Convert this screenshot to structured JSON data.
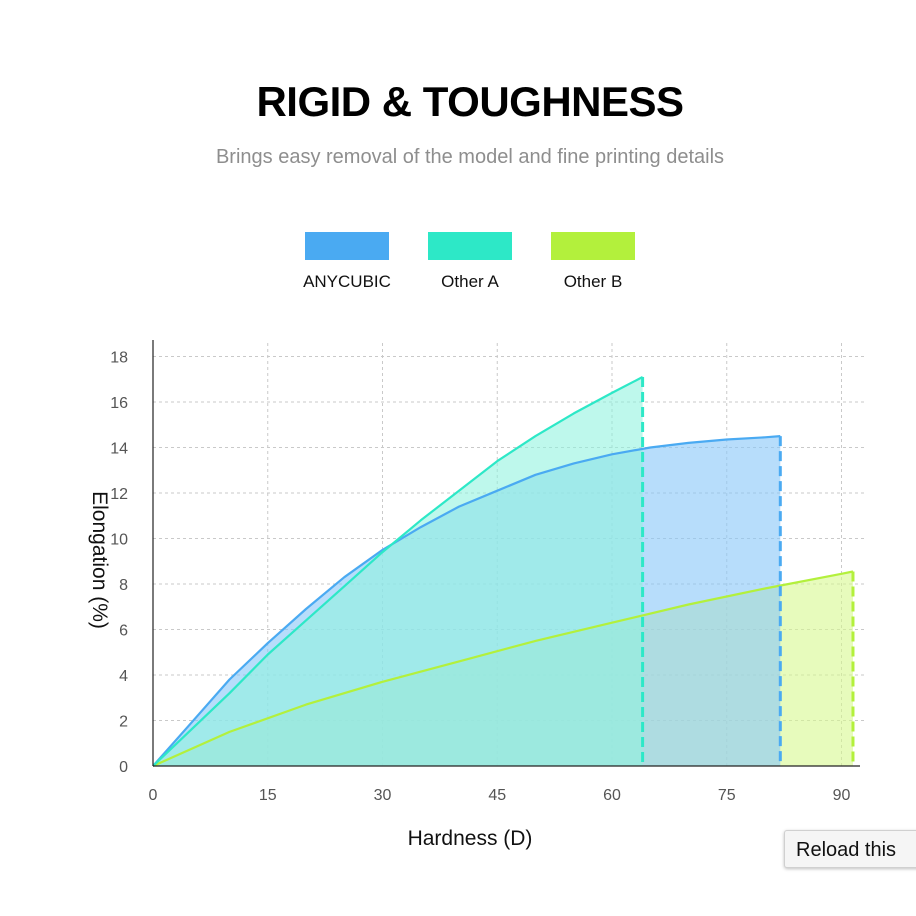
{
  "header": {
    "title": "RIGID & TOUGHNESS",
    "subtitle": "Brings easy removal of the model and fine printing details"
  },
  "reload_button": {
    "label": "Reload this"
  },
  "chart_data": {
    "type": "area",
    "xlabel": "Hardness (D)",
    "ylabel": "Elongation (%)",
    "xlim": [
      0,
      93
    ],
    "ylim": [
      0,
      18
    ],
    "xticks": [
      0,
      15,
      30,
      45,
      60,
      75,
      90
    ],
    "yticks": [
      0,
      2,
      4,
      6,
      8,
      10,
      12,
      14,
      16,
      18
    ],
    "grid": true,
    "legend_position": "top-center",
    "series": [
      {
        "name": "ANYCUBIC",
        "color": "#4aaaf2",
        "fill": "#8ac8f8",
        "x": [
          0,
          5,
          10,
          15,
          20,
          25,
          30,
          35,
          40,
          45,
          50,
          55,
          60,
          65,
          70,
          75,
          80,
          82
        ],
        "y": [
          0,
          1.9,
          3.8,
          5.4,
          6.9,
          8.3,
          9.5,
          10.5,
          11.4,
          12.1,
          12.8,
          13.3,
          13.7,
          14.0,
          14.2,
          14.35,
          14.45,
          14.5
        ]
      },
      {
        "name": "Other A",
        "color": "#2de8c7",
        "fill": "#8ff3df",
        "x": [
          0,
          5,
          10,
          15,
          20,
          25,
          30,
          35,
          40,
          45,
          50,
          55,
          60,
          64
        ],
        "y": [
          0,
          1.6,
          3.2,
          4.9,
          6.4,
          7.9,
          9.4,
          10.8,
          12.1,
          13.4,
          14.5,
          15.5,
          16.4,
          17.1
        ]
      },
      {
        "name": "Other B",
        "color": "#b3f03c",
        "fill": "#d7f88f",
        "x": [
          0,
          10,
          20,
          30,
          40,
          50,
          60,
          70,
          80,
          90,
          91.5
        ],
        "y": [
          0,
          1.5,
          2.7,
          3.7,
          4.6,
          5.5,
          6.3,
          7.1,
          7.8,
          8.45,
          8.55
        ]
      }
    ]
  }
}
